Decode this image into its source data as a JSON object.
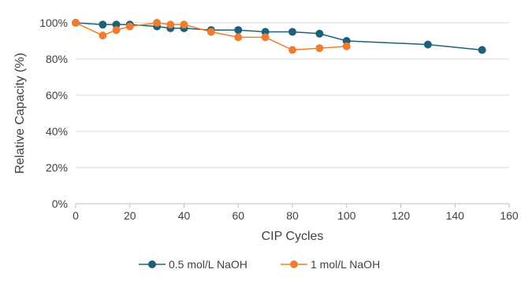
{
  "chart_data": {
    "type": "line",
    "title": "",
    "xlabel": "CIP Cycles",
    "ylabel": "Relative Capacity (%)",
    "xlim": [
      0,
      160
    ],
    "ylim": [
      0,
      100
    ],
    "x_ticks": [
      0,
      20,
      40,
      60,
      80,
      100,
      120,
      140,
      160
    ],
    "y_ticks": [
      0,
      20,
      40,
      60,
      80,
      100
    ],
    "y_tick_labels": [
      "0%",
      "20%",
      "40%",
      "60%",
      "80%",
      "100%"
    ],
    "grid": "horizontal",
    "legend_position": "bottom",
    "series": [
      {
        "name": "0.5 mol/L NaOH",
        "color": "#1f5f7a",
        "points": [
          [
            0,
            100
          ],
          [
            10,
            99
          ],
          [
            15,
            99
          ],
          [
            20,
            99
          ],
          [
            30,
            98
          ],
          [
            35,
            97
          ],
          [
            40,
            97
          ],
          [
            50,
            96
          ],
          [
            60,
            96
          ],
          [
            70,
            95
          ],
          [
            80,
            95
          ],
          [
            90,
            94
          ],
          [
            100,
            90
          ],
          [
            130,
            88
          ],
          [
            150,
            85
          ]
        ]
      },
      {
        "name": "1 mol/L NaOH",
        "color": "#f07c2f",
        "points": [
          [
            0,
            100
          ],
          [
            10,
            93
          ],
          [
            15,
            96
          ],
          [
            20,
            98
          ],
          [
            30,
            100
          ],
          [
            35,
            99
          ],
          [
            40,
            99
          ],
          [
            50,
            95
          ],
          [
            60,
            92
          ],
          [
            70,
            92
          ],
          [
            80,
            85
          ],
          [
            90,
            86
          ],
          [
            100,
            87
          ]
        ]
      }
    ]
  }
}
